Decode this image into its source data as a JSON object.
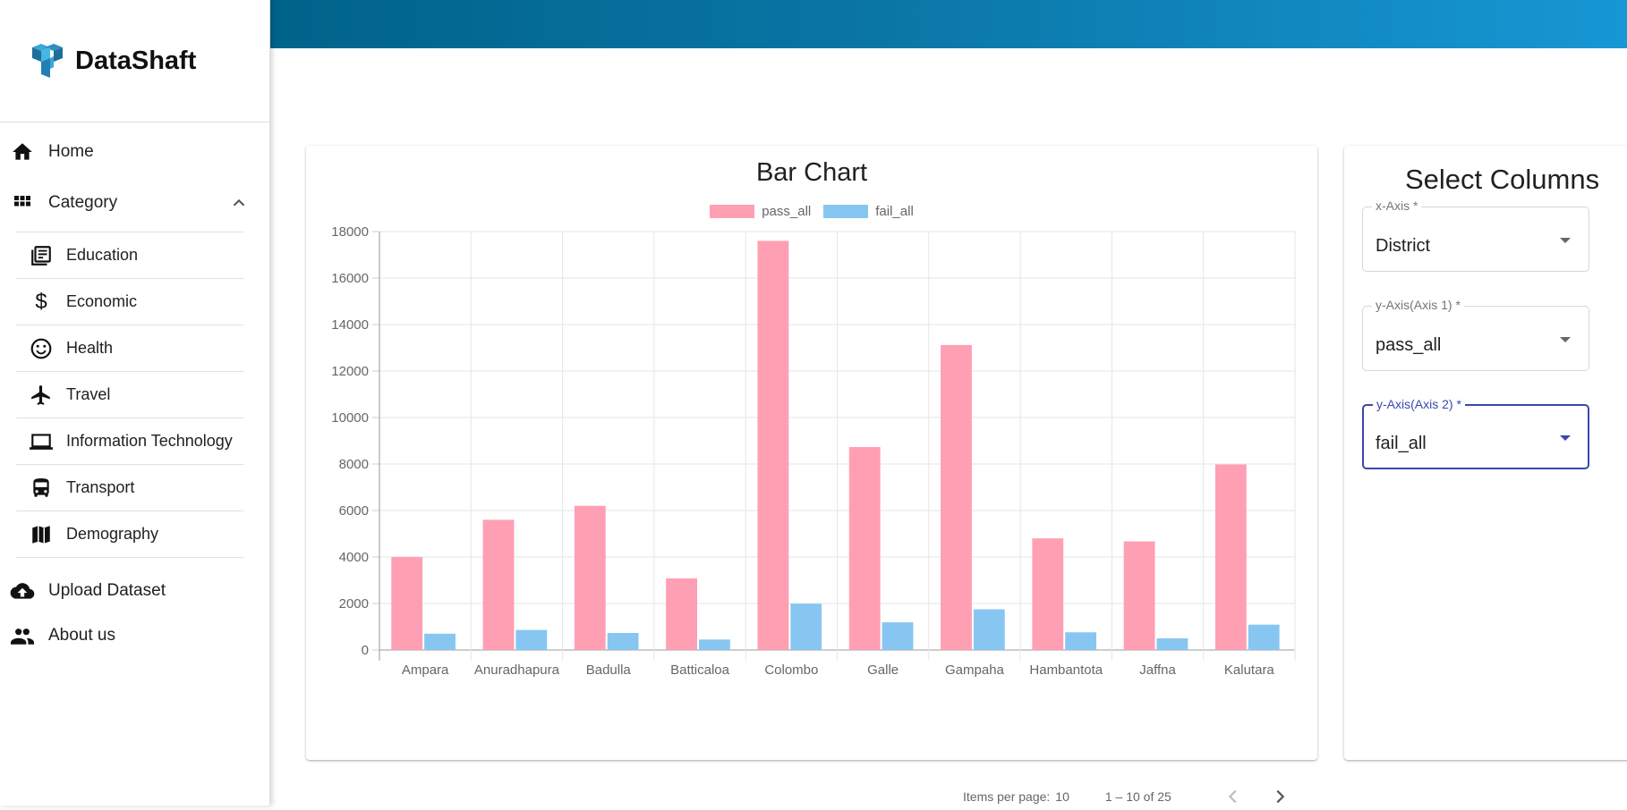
{
  "brand": {
    "name": "DataShaft"
  },
  "nav": {
    "home": "Home",
    "category": "Category",
    "sub_items": [
      {
        "label": "Education",
        "icon": "newspaper-icon"
      },
      {
        "label": "Economic",
        "icon": "dollar-icon"
      },
      {
        "label": "Health",
        "icon": "smiley-icon"
      },
      {
        "label": "Travel",
        "icon": "airplane-icon"
      },
      {
        "label": "Information Technology",
        "icon": "laptop-icon"
      },
      {
        "label": "Transport",
        "icon": "bus-icon"
      },
      {
        "label": "Demography",
        "icon": "map-icon"
      }
    ],
    "upload": "Upload Dataset",
    "about": "About us"
  },
  "select_columns": {
    "title": "Select Columns",
    "x_axis": {
      "label": "x-Axis *",
      "value": "District"
    },
    "y_axis_1": {
      "label": "y-Axis(Axis 1) *",
      "value": "pass_all"
    },
    "y_axis_2": {
      "label": "y-Axis(Axis 2) *",
      "value": "fail_all"
    }
  },
  "paginator": {
    "items_per_page_label": "Items per page:",
    "items_per_page": "10",
    "range": "1 – 10 of 25"
  },
  "colors": {
    "pass": "#ff9fb4",
    "fail": "#88c6f2",
    "accent": "#3949ab"
  },
  "chart_data": {
    "type": "bar",
    "title": "Bar Chart",
    "categories": [
      "Ampara",
      "Anuradhapura",
      "Badulla",
      "Batticaloa",
      "Colombo",
      "Galle",
      "Gampaha",
      "Hambantota",
      "Jaffna",
      "Kalutara"
    ],
    "series": [
      {
        "name": "pass_all",
        "values": [
          4000,
          5600,
          6200,
          3080,
          17600,
          8730,
          13120,
          4800,
          4670,
          7980
        ]
      },
      {
        "name": "fail_all",
        "values": [
          700,
          860,
          730,
          450,
          1990,
          1190,
          1750,
          760,
          500,
          1090
        ]
      }
    ],
    "ylim": [
      0,
      18000
    ],
    "yticks": [
      0,
      2000,
      4000,
      6000,
      8000,
      10000,
      12000,
      14000,
      16000,
      18000
    ],
    "legend": "top",
    "grid": true
  }
}
